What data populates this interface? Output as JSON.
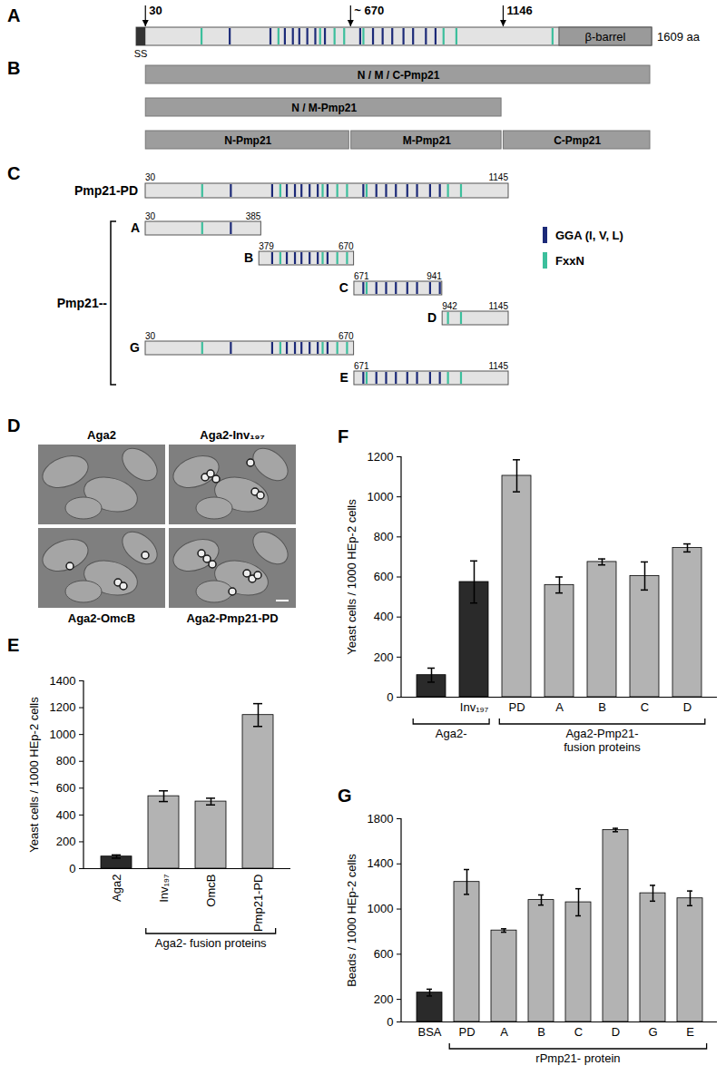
{
  "chart_data": [
    {
      "panel": "E",
      "type": "bar",
      "y_label": "Yeast cells / 1000 HEp-2 cells",
      "categories": [
        "Aga2",
        "Inv₁₉₇",
        "OmcB",
        "Pmp21-PD"
      ],
      "values": [
        90,
        540,
        500,
        1145
      ],
      "errors": [
        12,
        40,
        25,
        85
      ],
      "colors": [
        "#2a2a2a",
        "#b3b3b3",
        "#b3b3b3",
        "#b3b3b3"
      ],
      "ylim": [
        0,
        1400
      ],
      "yticks": [
        0,
        200,
        400,
        600,
        800,
        1000,
        1200,
        1400
      ],
      "category_groups": [
        {
          "label": [
            "Aga2- fusion proteins"
          ],
          "members": [
            "Inv₁₉₇",
            "OmcB",
            "Pmp21-PD"
          ]
        }
      ]
    },
    {
      "panel": "F",
      "type": "bar",
      "y_label": "Yeast cells / 1000 HEp-2 cells",
      "categories": [
        null,
        "Inv₁₉₇",
        "PD",
        "A",
        "B",
        "C",
        "D"
      ],
      "values": [
        110,
        575,
        1105,
        560,
        675,
        605,
        745
      ],
      "errors": [
        35,
        105,
        80,
        40,
        15,
        70,
        20
      ],
      "colors": [
        "#2a2a2a",
        "#2a2a2a",
        "#b3b3b3",
        "#b3b3b3",
        "#b3b3b3",
        "#b3b3b3",
        "#b3b3b3"
      ],
      "ylim": [
        0,
        1200
      ],
      "yticks": [
        0,
        200,
        400,
        600,
        800,
        1000,
        1200
      ],
      "category_groups": [
        {
          "label": [
            "Aga2-"
          ],
          "members": [
            null,
            "Inv₁₉₇"
          ]
        },
        {
          "label": [
            "Aga2-Pmp21-",
            "fusion proteins"
          ],
          "members": [
            "PD",
            "A",
            "B",
            "C",
            "D"
          ]
        }
      ]
    },
    {
      "panel": "G",
      "type": "bar",
      "y_label": "Beads / 1000 HEp-2 cells",
      "categories": [
        "BSA",
        "PD",
        "A",
        "B",
        "C",
        "D",
        "G",
        "E"
      ],
      "values": [
        260,
        1240,
        810,
        1080,
        1060,
        1700,
        1140,
        1095
      ],
      "errors": [
        30,
        110,
        15,
        45,
        120,
        15,
        70,
        65
      ],
      "colors": [
        "#2a2a2a",
        "#b3b3b3",
        "#b3b3b3",
        "#b3b3b3",
        "#b3b3b3",
        "#b3b3b3",
        "#b3b3b3",
        "#b3b3b3"
      ],
      "ylim": [
        0,
        1800
      ],
      "yticks": [
        0,
        200,
        600,
        1000,
        1400,
        1800
      ],
      "category_groups": [
        {
          "label": [
            "rPmp21- protein"
          ],
          "members": [
            "PD",
            "A",
            "B",
            "C",
            "D",
            "G",
            "E"
          ]
        }
      ]
    }
  ],
  "diagram": {
    "motifs": [
      {
        "label": "GGA (I, V, L)",
        "color": "#1c2a78",
        "positions": [
          293,
          420,
          465,
          490,
          510,
          535,
          560,
          590,
          700,
          740,
          770,
          800,
          835,
          865,
          905,
          935
        ]
      },
      {
        "label": "FxxN",
        "color": "#3cbf9c",
        "positions": [
          205,
          445,
          575,
          620,
          650,
          710,
          960,
          1000,
          1300
        ]
      }
    ],
    "protein_map": {
      "panel": "A",
      "name": "Pmp21",
      "length": {
        "value": 1609,
        "label": "1609 aa"
      },
      "signal": {
        "label": "SS",
        "start": 1,
        "end": 30
      },
      "beta_barrel": {
        "label": "β-barrel",
        "start": 1320,
        "end": 1609
      },
      "arrows": [
        {
          "value": 30,
          "label": "30"
        },
        {
          "value": 670,
          "label": "~ 670"
        },
        {
          "value": 1146,
          "label": "1146"
        }
      ]
    },
    "fragment_map": {
      "panel": "B",
      "rows": [
        [
          {
            "label": "N / M / C-Pmp21",
            "start": 30,
            "end": 1609
          }
        ],
        [
          {
            "label": "N / M-Pmp21",
            "start": 30,
            "end": 1145
          }
        ],
        [
          {
            "label": "N-Pmp21",
            "start": 30,
            "end": 670
          },
          {
            "label": "M-Pmp21",
            "start": 671,
            "end": 1145
          },
          {
            "label": "C-Pmp21",
            "start": 1146,
            "end": 1609
          }
        ]
      ]
    },
    "constructs": {
      "panel": "C",
      "full": {
        "label": "Pmp21-PD",
        "start": 30,
        "end": 1145
      },
      "group_label": "Pmp21--",
      "fragments": [
        {
          "label": "A",
          "start": 30,
          "end": 385
        },
        {
          "label": "B",
          "start": 379,
          "end": 670
        },
        {
          "label": "C",
          "start": 671,
          "end": 941
        },
        {
          "label": "D",
          "start": 942,
          "end": 1145
        },
        {
          "label": "G",
          "start": 30,
          "end": 670
        },
        {
          "label": "E",
          "start": 671,
          "end": 1145
        }
      ]
    },
    "micrographs": {
      "panel": "D",
      "labels": [
        "Aga2",
        "Aga2-Inv₁₉₇",
        "Aga2-OmcB",
        "Aga2-Pmp21-PD"
      ]
    }
  }
}
